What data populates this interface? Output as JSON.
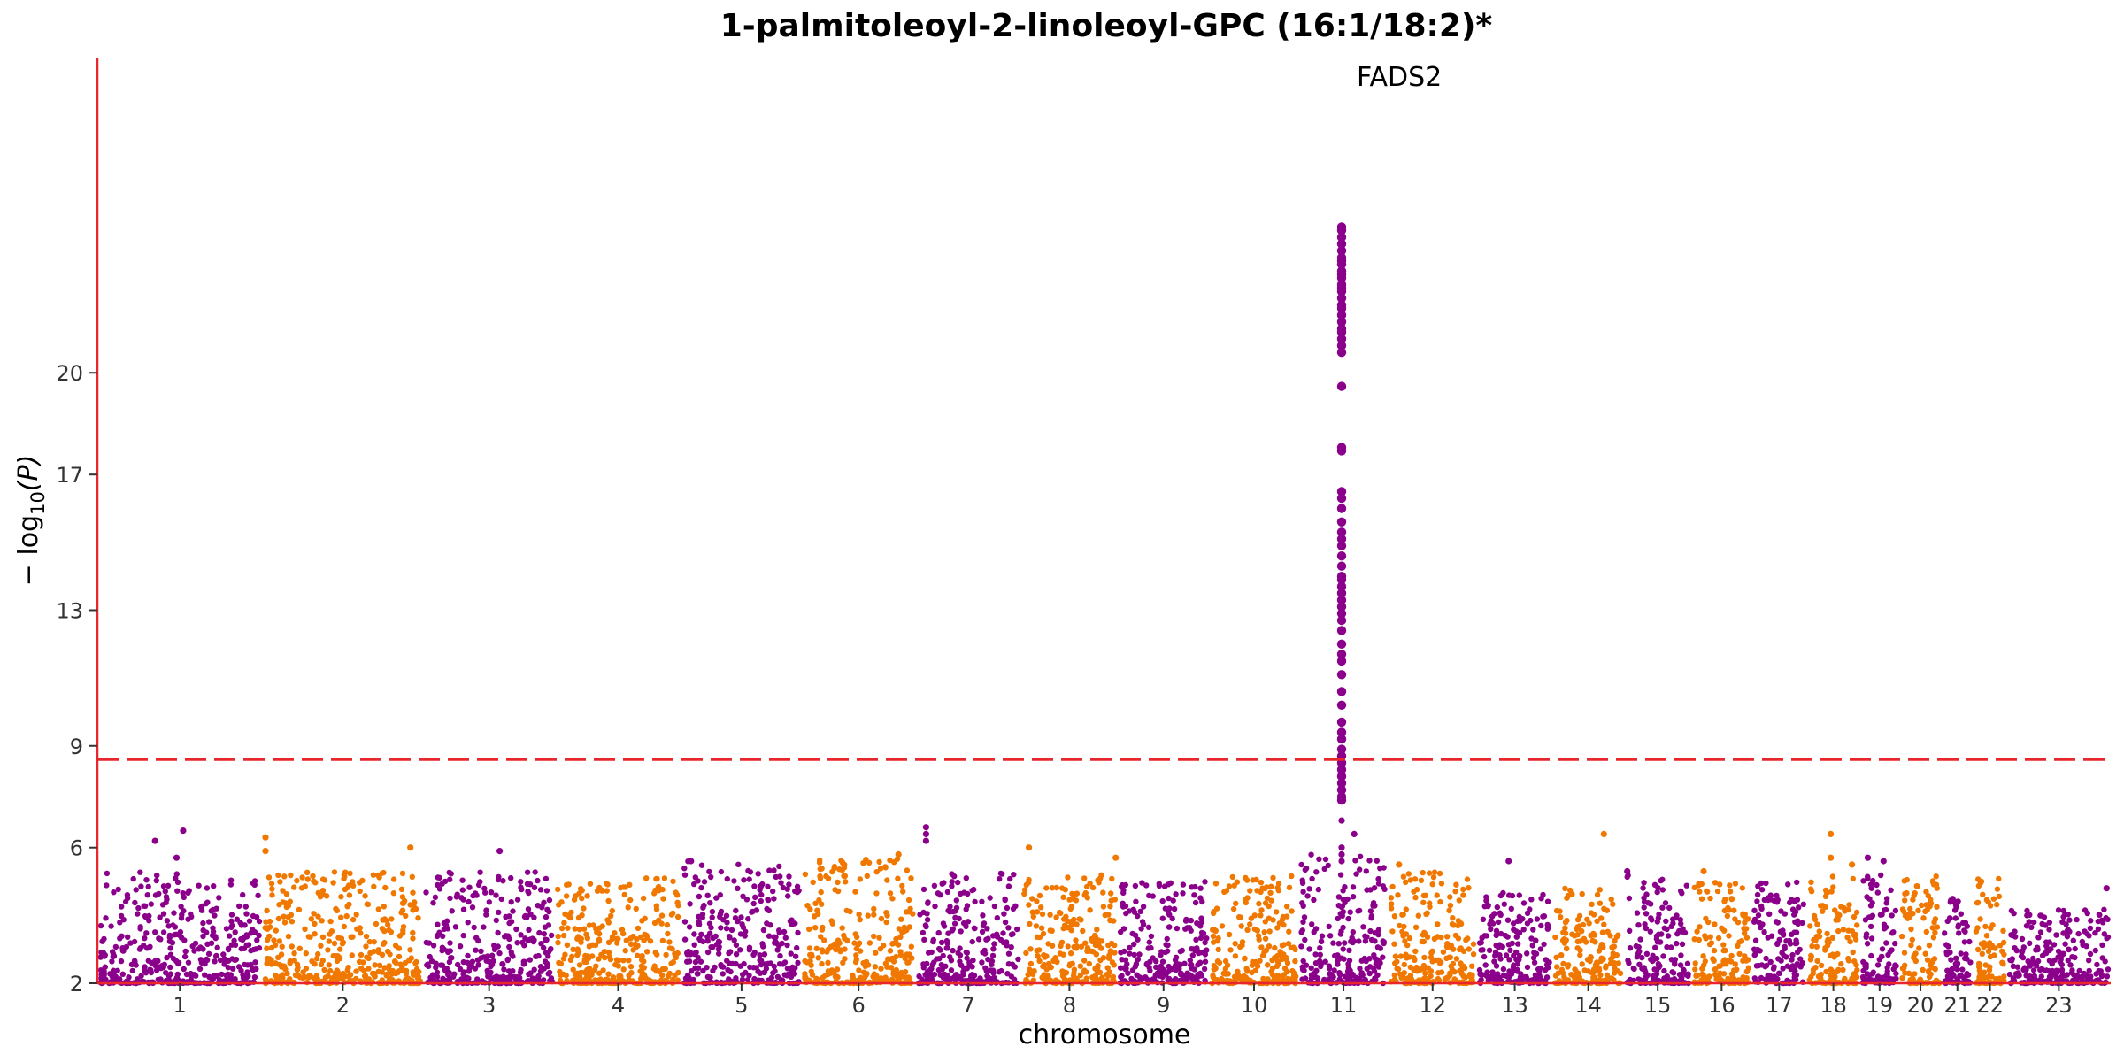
{
  "chart_data": {
    "type": "scatter",
    "subtype": "manhattan",
    "title": "1-palmitoleoyl-2-linoleoyl-GPC (16:1/18:2)*",
    "xlabel": "chromosome",
    "ylabel_parts": {
      "prefix": "− log",
      "sub": "10",
      "suffix": "(P)"
    },
    "ylim": [
      2,
      24.5
    ],
    "yticks": [
      2,
      6,
      9,
      13,
      17,
      20
    ],
    "significance_threshold": 7.3,
    "grid": false,
    "colors": {
      "odd": "#8b008b",
      "even": "#f07800",
      "threshold": "#e8262b",
      "axis": "#e8262b"
    },
    "chromosomes": [
      {
        "label": "1",
        "len": 248,
        "peak": 5.3,
        "top": [
          [
            0.35,
            6.2
          ],
          [
            0.52,
            6.5
          ],
          [
            0.48,
            5.7
          ]
        ]
      },
      {
        "label": "2",
        "len": 242,
        "peak": 5.3,
        "top": [
          [
            0.02,
            6.3
          ],
          [
            0.02,
            5.9
          ],
          [
            0.92,
            6.0
          ]
        ]
      },
      {
        "label": "3",
        "len": 198,
        "peak": 5.3,
        "top": [
          [
            0.58,
            5.9
          ]
        ]
      },
      {
        "label": "4",
        "len": 190,
        "peak": 5.1,
        "top": []
      },
      {
        "label": "5",
        "len": 181,
        "peak": 5.6,
        "top": [
          [
            0.08,
            5.6
          ]
        ]
      },
      {
        "label": "6",
        "len": 171,
        "peak": 5.7,
        "top": [
          [
            0.85,
            5.8
          ]
        ]
      },
      {
        "label": "7",
        "len": 159,
        "peak": 5.3,
        "top": [
          [
            0.1,
            6.6
          ],
          [
            0.1,
            6.4
          ],
          [
            0.1,
            6.2
          ]
        ]
      },
      {
        "label": "8",
        "len": 145,
        "peak": 5.2,
        "top": [
          [
            0.08,
            6.0
          ],
          [
            0.98,
            5.7
          ]
        ]
      },
      {
        "label": "9",
        "len": 138,
        "peak": 5.0,
        "top": []
      },
      {
        "label": "10",
        "len": 134,
        "peak": 5.2,
        "top": []
      },
      {
        "label": "11",
        "len": 135,
        "peak": 5.8,
        "top": [
          [
            0.48,
            6.8
          ],
          [
            0.62,
            6.4
          ],
          [
            0.48,
            6.0
          ],
          [
            0.48,
            5.8
          ],
          [
            0.48,
            5.6
          ]
        ]
      },
      {
        "label": "12",
        "len": 133,
        "peak": 5.3,
        "top": [
          [
            0.12,
            5.5
          ]
        ]
      },
      {
        "label": "13",
        "len": 114,
        "peak": 4.8,
        "top": [
          [
            0.42,
            5.6
          ]
        ]
      },
      {
        "label": "14",
        "len": 107,
        "peak": 4.9,
        "top": [
          [
            0.72,
            6.4
          ]
        ]
      },
      {
        "label": "15",
        "len": 102,
        "peak": 5.2,
        "top": [
          [
            0.05,
            5.3
          ]
        ]
      },
      {
        "label": "16",
        "len": 90,
        "peak": 5.0,
        "top": [
          [
            0.2,
            5.3
          ]
        ]
      },
      {
        "label": "17",
        "len": 83,
        "peak": 5.0,
        "top": []
      },
      {
        "label": "18",
        "len": 80,
        "peak": 5.2,
        "top": [
          [
            0.45,
            6.4
          ],
          [
            0.45,
            5.7
          ],
          [
            0.85,
            5.5
          ]
        ]
      },
      {
        "label": "19",
        "len": 59,
        "peak": 5.2,
        "top": [
          [
            0.2,
            5.7
          ],
          [
            0.6,
            5.6
          ]
        ]
      },
      {
        "label": "20",
        "len": 64,
        "peak": 5.2,
        "top": []
      },
      {
        "label": "21",
        "len": 47,
        "peak": 4.5,
        "top": []
      },
      {
        "label": "22",
        "len": 51,
        "peak": 5.3,
        "top": []
      },
      {
        "label": "23",
        "len": 156,
        "peak": 4.2,
        "top": [
          [
            0.96,
            4.8
          ]
        ]
      }
    ],
    "hit": {
      "chromosome": "11",
      "pos_frac": 0.48,
      "label": "FADS2",
      "values": [
        24.3,
        24.2,
        24.0,
        23.8,
        23.6,
        23.4,
        23.3,
        23.2,
        23.0,
        22.9,
        22.8,
        22.6,
        22.5,
        22.4,
        22.2,
        22.0,
        21.9,
        21.7,
        21.5,
        21.3,
        21.2,
        21.0,
        20.8,
        20.6,
        19.6,
        17.8,
        17.7,
        16.5,
        16.3,
        16.0,
        15.6,
        15.3,
        15.1,
        14.9,
        14.6,
        14.3,
        14.0,
        13.9,
        13.7,
        13.5,
        13.3,
        13.1,
        12.9,
        12.7,
        12.4,
        12.0,
        11.7,
        11.5,
        11.1,
        10.6,
        10.2,
        9.7,
        9.4,
        9.2,
        8.9,
        8.7,
        8.5,
        8.3,
        8.1,
        7.9,
        7.7,
        7.5,
        7.4
      ]
    }
  }
}
